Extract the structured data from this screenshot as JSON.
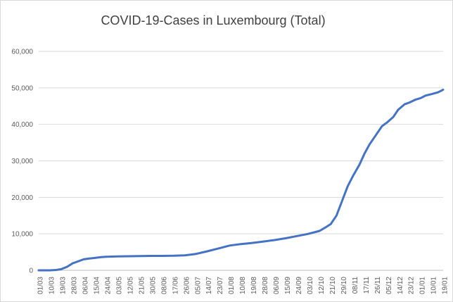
{
  "chart_data": {
    "type": "line",
    "title": "COVID-19-Cases in Luxembourg (Total)",
    "xlabel": "",
    "ylabel": "",
    "ylim": [
      0,
      60000
    ],
    "yticks": [
      "0",
      "10,000",
      "20,000",
      "30,000",
      "40,000",
      "50,000",
      "60,000"
    ],
    "ytick_values": [
      0,
      10000,
      20000,
      30000,
      40000,
      50000,
      60000
    ],
    "grid": "horizontal",
    "legend": "none",
    "line_color": "#4472c4",
    "xticks": [
      "01/03",
      "10/03",
      "19/03",
      "28/03",
      "06/04",
      "15/04",
      "24/04",
      "03/05",
      "12/05",
      "21/05",
      "30/05",
      "08/06",
      "17/06",
      "26/06",
      "05/07",
      "14/07",
      "23/07",
      "01/08",
      "10/08",
      "19/08",
      "28/08",
      "06/09",
      "15/09",
      "24/09",
      "03/10",
      "12/10",
      "21/10",
      "29/10",
      "08/11",
      "17/11",
      "26/11",
      "05/12",
      "14/12",
      "23/12",
      "01/01",
      "10/01",
      "19/01"
    ],
    "series": [
      {
        "x": [
          "01/03",
          "10/03",
          "15/03",
          "19/03",
          "24/03",
          "28/03",
          "02/04",
          "06/04",
          "10/04",
          "15/04",
          "20/04",
          "24/04",
          "03/05",
          "12/05",
          "21/05",
          "30/05",
          "08/06",
          "17/06",
          "26/06",
          "05/07",
          "14/07",
          "23/07",
          "01/08",
          "10/08",
          "19/08",
          "28/08",
          "06/09",
          "15/09",
          "24/09",
          "03/10",
          "12/10",
          "17/10",
          "21/10",
          "25/10",
          "29/10",
          "03/11",
          "08/11",
          "13/11",
          "17/11",
          "21/11",
          "26/11",
          "01/12",
          "05/12",
          "10/12",
          "14/12",
          "19/12",
          "23/12",
          "28/12",
          "01/01",
          "05/01",
          "10/01",
          "15/01",
          "19/01"
        ],
        "values": [
          0,
          0,
          100,
          300,
          1000,
          1900,
          2500,
          3000,
          3200,
          3400,
          3600,
          3700,
          3800,
          3850,
          3900,
          3950,
          3950,
          4000,
          4100,
          4500,
          5200,
          6000,
          6800,
          7200,
          7500,
          7900,
          8300,
          8800,
          9400,
          10000,
          10800,
          11800,
          12700,
          15000,
          19000,
          23000,
          26000,
          29000,
          32000,
          34500,
          37000,
          39500,
          40500,
          42000,
          44000,
          45500,
          46000,
          46800,
          47200,
          47900,
          48300,
          48800,
          49500
        ]
      }
    ]
  }
}
